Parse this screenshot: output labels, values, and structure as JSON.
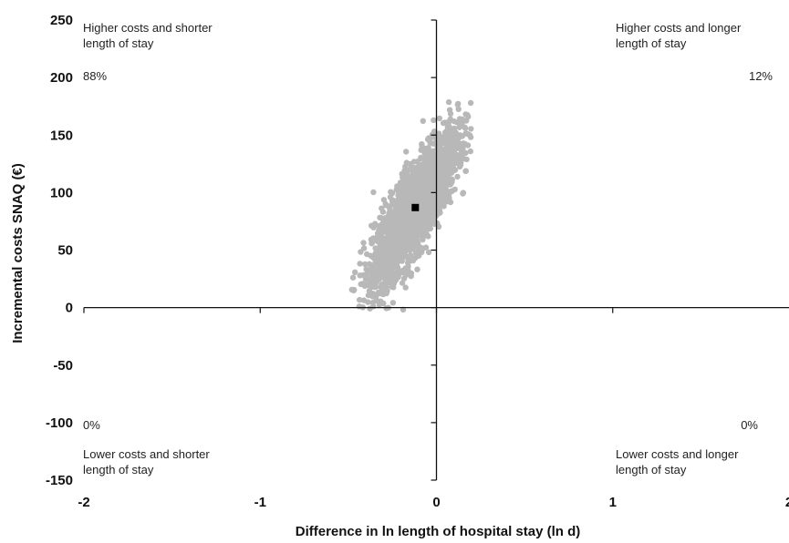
{
  "chart_data": {
    "type": "scatter",
    "title": "",
    "xlabel": "Difference in ln length of hospital stay (ln d)",
    "ylabel": "Incremental costs SNAQ (€)",
    "xlim": [
      -2,
      2
    ],
    "ylim": [
      -150,
      250
    ],
    "x_ticks": [
      "-2",
      "-1",
      "0",
      "1",
      "2"
    ],
    "y_ticks": [
      "250",
      "200",
      "150",
      "100",
      "50",
      "0",
      "-50",
      "-100",
      "-150"
    ],
    "grid": false,
    "point_estimate": {
      "x": -0.12,
      "y": 87
    },
    "cloud": {
      "description_free": true,
      "n": 2600,
      "mean_x": -0.12,
      "mean_y": 87,
      "sd_x": 0.12,
      "sd_y": 32,
      "correlation": 0.82,
      "x_range": [
        -0.48,
        0.2
      ],
      "y_range": [
        -2,
        180
      ],
      "color": "#b8b8b8"
    },
    "point_estimate_color": "#000000",
    "quadrants": {
      "top_left": {
        "label_line1": "Higher costs and shorter",
        "label_line2": "length of stay",
        "percent": "88%"
      },
      "top_right": {
        "label_line1": "Higher costs and longer",
        "label_line2": "length of stay",
        "percent": "12%"
      },
      "bottom_left": {
        "label_line1": "Lower costs and shorter",
        "label_line2": "length of stay",
        "percent": "0%"
      },
      "bottom_right": {
        "label_line1": "Lower costs and longer",
        "label_line2": "length of stay",
        "percent": "0%"
      }
    }
  }
}
